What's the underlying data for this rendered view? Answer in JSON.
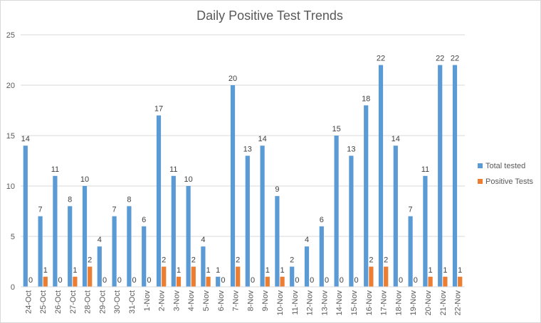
{
  "chart_data": {
    "type": "bar",
    "title": "Daily Positive Test Trends",
    "xlabel": "",
    "ylabel": "",
    "ylim": [
      0,
      25
    ],
    "yticks": [
      0,
      5,
      10,
      15,
      20,
      25
    ],
    "grid": true,
    "legend_position": "right",
    "categories": [
      "24-Oct",
      "25-Oct",
      "26-Oct",
      "27-Oct",
      "28-Oct",
      "29-Oct",
      "30-Oct",
      "31-Oct",
      "1-Nov",
      "2-Nov",
      "3-Nov",
      "4-Nov",
      "5-Nov",
      "6-Nov",
      "7-Nov",
      "8-Nov",
      "9-Nov",
      "10-Nov",
      "11-Nov",
      "12-Nov",
      "13-Nov",
      "14-Nov",
      "15-Nov",
      "16-Nov",
      "17-Nov",
      "18-Nov",
      "19-Nov",
      "20-Nov",
      "21-Nov",
      "22-Nov"
    ],
    "series": [
      {
        "name": "Total tested",
        "color": "#5b9bd5",
        "values": [
          14,
          7,
          11,
          8,
          10,
          4,
          7,
          8,
          6,
          17,
          11,
          10,
          4,
          1,
          20,
          13,
          14,
          9,
          2,
          4,
          6,
          15,
          13,
          18,
          22,
          14,
          7,
          11,
          22,
          22
        ]
      },
      {
        "name": "Positive Tests",
        "color": "#ed7d31",
        "values": [
          0,
          1,
          0,
          1,
          2,
          0,
          0,
          0,
          0,
          2,
          1,
          2,
          1,
          0,
          2,
          0,
          1,
          1,
          0,
          0,
          0,
          0,
          0,
          2,
          2,
          0,
          0,
          1,
          1,
          1
        ]
      }
    ]
  }
}
